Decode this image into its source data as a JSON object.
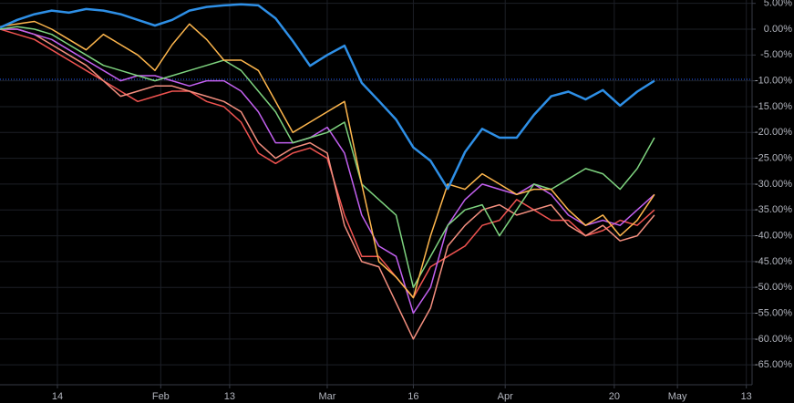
{
  "chart_data": {
    "type": "line",
    "xlim": [
      3,
      134
    ],
    "ylim": [
      -68.5,
      5.65
    ],
    "grid": true,
    "background": "#000000",
    "hline": -9.7,
    "hline_color": "#2962ff",
    "xticks": [
      {
        "value": 13,
        "label": "14"
      },
      {
        "value": 31,
        "label": "Feb"
      },
      {
        "value": 43,
        "label": "13"
      },
      {
        "value": 60,
        "label": "Mar"
      },
      {
        "value": 75,
        "label": "16"
      },
      {
        "value": 91,
        "label": "Apr"
      },
      {
        "value": 110,
        "label": "20"
      },
      {
        "value": 121,
        "label": "May"
      },
      {
        "value": 133,
        "label": "13"
      }
    ],
    "yticks": [
      {
        "value": 5,
        "label": "5.00%"
      },
      {
        "value": 0,
        "label": "0.00%"
      },
      {
        "value": -5,
        "label": "-5.00%"
      },
      {
        "value": -10,
        "label": "-10.00%"
      },
      {
        "value": -15,
        "label": "-15.00%"
      },
      {
        "value": -20,
        "label": "-20.00%"
      },
      {
        "value": -25,
        "label": "-25.00%"
      },
      {
        "value": -30,
        "label": "-30.00%"
      },
      {
        "value": -35,
        "label": "-35.00%"
      },
      {
        "value": -40,
        "label": "-40.00%"
      },
      {
        "value": -45,
        "label": "-45.00%"
      },
      {
        "value": -50,
        "label": "-50.00%"
      },
      {
        "value": -55,
        "label": "-55.00%"
      },
      {
        "value": -60,
        "label": "-60.00%"
      },
      {
        "value": -65,
        "label": "-65.00%"
      }
    ],
    "x": [
      3,
      6,
      9,
      12,
      15,
      18,
      21,
      24,
      27,
      30,
      33,
      36,
      39,
      42,
      45,
      48,
      51,
      54,
      57,
      60,
      63,
      66,
      69,
      72,
      75,
      78,
      81,
      84,
      87,
      90,
      93,
      96,
      99,
      102,
      105,
      108,
      111,
      114,
      117
    ],
    "series": [
      {
        "color": "#ef5350",
        "values": [
          0,
          -1,
          -2,
          -4,
          -6,
          -8,
          -10,
          -12,
          -14,
          -13,
          -12,
          -12,
          -14,
          -15,
          -18,
          -24,
          -26,
          -24,
          -23,
          -25,
          -36,
          -44,
          -44,
          -48,
          -52,
          -46,
          -44,
          -42,
          -38,
          -37,
          -33,
          -35,
          -37,
          -37,
          -40,
          -39,
          -37,
          -38,
          -35
        ]
      },
      {
        "color": "#f48f7f",
        "values": [
          0,
          0,
          -1,
          -3,
          -5,
          -7,
          -10,
          -13,
          -12,
          -11,
          -11,
          -12,
          -13,
          -14,
          -16,
          -22,
          -25,
          -23,
          -22,
          -24,
          -38,
          -45,
          -46,
          -53,
          -60,
          -54,
          -42,
          -38,
          -35,
          -34,
          -36,
          -35,
          -34,
          -38,
          -40,
          -38,
          -41,
          -40,
          -36
        ]
      },
      {
        "color": "#c260f0",
        "values": [
          0,
          0,
          -1,
          -2,
          -4,
          -6,
          -8,
          -10,
          -9,
          -9,
          -10,
          -11,
          -10,
          -10,
          -12,
          -16,
          -22,
          -22,
          -21,
          -19,
          -24,
          -36,
          -42,
          -44,
          -55,
          -50,
          -38,
          -33,
          -30,
          -31,
          -32,
          -30,
          -32,
          -36,
          -38,
          -37,
          -38,
          -35,
          -32
        ]
      },
      {
        "color": "#7ed37f",
        "values": [
          0,
          0.5,
          0,
          -1,
          -3,
          -5,
          -7,
          -8,
          -9,
          -10,
          -9,
          -8,
          -7,
          -6,
          -8,
          -12,
          -16,
          -22,
          -21,
          -20,
          -18,
          -30,
          -33,
          -36,
          -50,
          -44,
          -38,
          -35,
          -34,
          -40,
          -35,
          -30,
          -31,
          -29,
          -27,
          -28,
          -31,
          -27,
          -21
        ]
      },
      {
        "color": "#ffb74d",
        "values": [
          0.5,
          1,
          1.5,
          0,
          -2,
          -4,
          -1,
          -3,
          -5,
          -8,
          -3,
          1,
          -2,
          -6,
          -6,
          -8,
          -14,
          -20,
          -18,
          -16,
          -14,
          -30,
          -45,
          -48,
          -52,
          -40,
          -30,
          -31,
          -28,
          -30,
          -32,
          -31,
          -31,
          -35,
          -38,
          -36,
          -40,
          -37,
          -32
        ]
      },
      {
        "color": "#2e8fe6",
        "values": [
          0.3,
          1.8,
          2.9,
          3.6,
          3.2,
          3.9,
          3.6,
          2.9,
          1.8,
          0.7,
          1.8,
          3.6,
          4.3,
          4.6,
          4.8,
          4.6,
          2.1,
          -2.3,
          -7.1,
          -5,
          -3.2,
          -10.4,
          -13.9,
          -17.5,
          -22.9,
          -25.5,
          -30.9,
          -23.8,
          -19.3,
          -21,
          -21,
          -16.6,
          -13,
          -12.1,
          -13.6,
          -11.8,
          -14.8,
          -12.1,
          -10
        ]
      }
    ]
  }
}
